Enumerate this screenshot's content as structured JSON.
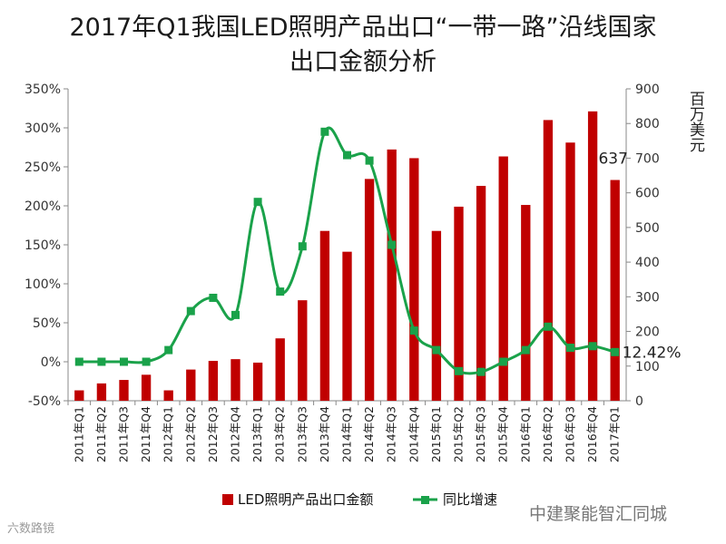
{
  "title_line1": "2017年Q1我国LED照明产品出口“一带一路”沿线国家",
  "title_line2": "出口金额分析",
  "watermark_left": "六数路镜",
  "watermark_right": "中建聚能智汇同城",
  "chart_data": {
    "type": "bar+line",
    "categories": [
      "2011年Q1",
      "2011年Q2",
      "2011年Q3",
      "2011年Q4",
      "2012年Q1",
      "2012年Q2",
      "2012年Q3",
      "2012年Q4",
      "2013年Q1",
      "2013年Q2",
      "2013年Q3",
      "2013年Q4",
      "2014年Q1",
      "2014年Q2",
      "2014年Q3",
      "2014年Q4",
      "2015年Q1",
      "2015年Q2",
      "2015年Q3",
      "2015年Q4",
      "2016年Q1",
      "2016年Q2",
      "2016年Q3",
      "2016年Q4",
      "2017年Q1"
    ],
    "series": [
      {
        "name": "LED照明产品出口金额",
        "type": "bar",
        "axis": "right",
        "color": "#c00000",
        "values": [
          30,
          50,
          60,
          75,
          30,
          90,
          115,
          120,
          110,
          180,
          290,
          490,
          430,
          640,
          725,
          700,
          490,
          560,
          620,
          705,
          565,
          810,
          745,
          835,
          637
        ]
      },
      {
        "name": "同比增速",
        "type": "line",
        "axis": "left",
        "color": "#1aa24a",
        "values": [
          0,
          0,
          0,
          0,
          15,
          65,
          82,
          60,
          205,
          90,
          148,
          295,
          265,
          258,
          150,
          40,
          15,
          -12,
          -13,
          0,
          15,
          45,
          18,
          20,
          12.42
        ]
      }
    ],
    "y_left": {
      "min": -50,
      "max": 350,
      "step": 50,
      "tick_labels": [
        "-50%",
        "0%",
        "50%",
        "100%",
        "150%",
        "200%",
        "250%",
        "300%",
        "350%"
      ]
    },
    "y_right": {
      "min": 0,
      "max": 900,
      "step": 100,
      "label": "百万美元",
      "tick_labels": [
        "0",
        "100",
        "200",
        "300",
        "400",
        "500",
        "600",
        "700",
        "800",
        "900"
      ]
    },
    "annotations": {
      "bar_last": "637",
      "line_last": "12.42%"
    },
    "legend_position": "bottom",
    "grid": false
  }
}
